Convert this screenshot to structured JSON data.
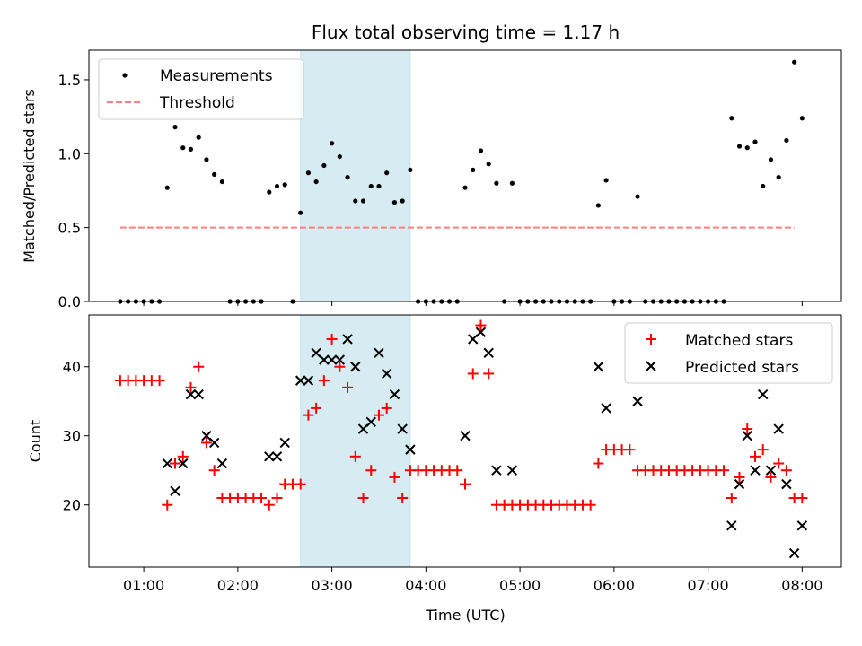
{
  "chart_data": [
    {
      "type": "scatter",
      "title": "Flux total observing time = 1.17 h",
      "xlabel": "",
      "ylabel": "Matched/Predicted stars",
      "xlim": [
        "00:25",
        "08:25"
      ],
      "ylim": [
        0,
        1.7
      ],
      "y_ticks": [
        0.0,
        0.5,
        1.0,
        1.5
      ],
      "y_tick_labels": [
        "0.0",
        "0.5",
        "1.0",
        "1.5"
      ],
      "x_tick_labels_shown": false,
      "highlight_span": [
        "02:40",
        "03:50"
      ],
      "legend": {
        "position": "top-left",
        "entries": [
          "Measurements",
          "Threshold"
        ]
      },
      "series": [
        {
          "name": "Measurements",
          "marker": "dot",
          "color": "#000000",
          "points": [
            [
              "00:45",
              0
            ],
            [
              "00:50",
              0
            ],
            [
              "00:55",
              0
            ],
            [
              "01:00",
              0
            ],
            [
              "01:05",
              0
            ],
            [
              "01:10",
              0
            ],
            [
              "01:15",
              0.77
            ],
            [
              "01:20",
              1.18
            ],
            [
              "01:25",
              1.04
            ],
            [
              "01:30",
              1.03
            ],
            [
              "01:35",
              1.11
            ],
            [
              "01:40",
              0.96
            ],
            [
              "01:45",
              0.86
            ],
            [
              "01:50",
              0.81
            ],
            [
              "01:55",
              0
            ],
            [
              "02:00",
              0
            ],
            [
              "02:05",
              0
            ],
            [
              "02:10",
              0
            ],
            [
              "02:15",
              0
            ],
            [
              "02:20",
              0.74
            ],
            [
              "02:25",
              0.78
            ],
            [
              "02:30",
              0.79
            ],
            [
              "02:35",
              0
            ],
            [
              "02:40",
              0.6
            ],
            [
              "02:45",
              0.87
            ],
            [
              "02:50",
              0.81
            ],
            [
              "02:55",
              0.92
            ],
            [
              "03:00",
              1.07
            ],
            [
              "03:05",
              0.98
            ],
            [
              "03:10",
              0.84
            ],
            [
              "03:15",
              0.68
            ],
            [
              "03:20",
              0.68
            ],
            [
              "03:25",
              0.78
            ],
            [
              "03:30",
              0.78
            ],
            [
              "03:35",
              0.87
            ],
            [
              "03:40",
              0.67
            ],
            [
              "03:45",
              0.68
            ],
            [
              "03:50",
              0.89
            ],
            [
              "03:55",
              0
            ],
            [
              "04:00",
              0
            ],
            [
              "04:05",
              0
            ],
            [
              "04:10",
              0
            ],
            [
              "04:15",
              0
            ],
            [
              "04:20",
              0
            ],
            [
              "04:25",
              0.77
            ],
            [
              "04:30",
              0.89
            ],
            [
              "04:35",
              1.02
            ],
            [
              "04:40",
              0.93
            ],
            [
              "04:45",
              0.8
            ],
            [
              "04:50",
              0
            ],
            [
              "04:55",
              0.8
            ],
            [
              "05:00",
              0
            ],
            [
              "05:05",
              0
            ],
            [
              "05:10",
              0
            ],
            [
              "05:15",
              0
            ],
            [
              "05:20",
              0
            ],
            [
              "05:25",
              0
            ],
            [
              "05:30",
              0
            ],
            [
              "05:35",
              0
            ],
            [
              "05:40",
              0
            ],
            [
              "05:45",
              0
            ],
            [
              "05:50",
              0.65
            ],
            [
              "05:55",
              0.82
            ],
            [
              "06:00",
              0
            ],
            [
              "06:05",
              0
            ],
            [
              "06:10",
              0
            ],
            [
              "06:15",
              0.71
            ],
            [
              "06:20",
              0
            ],
            [
              "06:25",
              0
            ],
            [
              "06:30",
              0
            ],
            [
              "06:35",
              0
            ],
            [
              "06:40",
              0
            ],
            [
              "06:45",
              0
            ],
            [
              "06:50",
              0
            ],
            [
              "06:55",
              0
            ],
            [
              "07:00",
              0
            ],
            [
              "07:05",
              0
            ],
            [
              "07:10",
              0
            ],
            [
              "07:15",
              1.24
            ],
            [
              "07:20",
              1.05
            ],
            [
              "07:25",
              1.04
            ],
            [
              "07:30",
              1.08
            ],
            [
              "07:35",
              0.78
            ],
            [
              "07:40",
              0.96
            ],
            [
              "07:45",
              0.84
            ],
            [
              "07:50",
              1.09
            ],
            [
              "07:55",
              1.62
            ],
            [
              "08:00",
              1.24
            ]
          ]
        },
        {
          "name": "Threshold",
          "marker": "dashed-line",
          "color": "#ff7f7f",
          "points": [
            [
              "00:45",
              0.5
            ],
            [
              "07:55",
              0.5
            ]
          ]
        }
      ]
    },
    {
      "type": "scatter",
      "title": "",
      "xlabel": "Time (UTC)",
      "ylabel": "Count",
      "xlim": [
        "00:25",
        "08:25"
      ],
      "ylim": [
        11,
        47.5
      ],
      "y_ticks": [
        20,
        30,
        40
      ],
      "y_tick_labels": [
        "20",
        "30",
        "40"
      ],
      "x_ticks": [
        "01:00",
        "02:00",
        "03:00",
        "04:00",
        "05:00",
        "06:00",
        "07:00",
        "08:00"
      ],
      "highlight_span": [
        "02:40",
        "03:50"
      ],
      "legend": {
        "position": "top-right",
        "entries": [
          "Matched stars",
          "Predicted stars"
        ]
      },
      "series": [
        {
          "name": "Matched stars",
          "marker": "plus",
          "color": "#ff0000",
          "points": [
            [
              "00:45",
              38
            ],
            [
              "00:50",
              38
            ],
            [
              "00:55",
              38
            ],
            [
              "01:00",
              38
            ],
            [
              "01:05",
              38
            ],
            [
              "01:10",
              38
            ],
            [
              "01:15",
              20
            ],
            [
              "01:20",
              26
            ],
            [
              "01:25",
              27
            ],
            [
              "01:30",
              37
            ],
            [
              "01:35",
              40
            ],
            [
              "01:40",
              29
            ],
            [
              "01:45",
              25
            ],
            [
              "01:50",
              21
            ],
            [
              "01:55",
              21
            ],
            [
              "02:00",
              21
            ],
            [
              "02:05",
              21
            ],
            [
              "02:10",
              21
            ],
            [
              "02:15",
              21
            ],
            [
              "02:20",
              20
            ],
            [
              "02:25",
              21
            ],
            [
              "02:30",
              23
            ],
            [
              "02:35",
              23
            ],
            [
              "02:40",
              23
            ],
            [
              "02:45",
              33
            ],
            [
              "02:50",
              34
            ],
            [
              "02:55",
              38
            ],
            [
              "03:00",
              44
            ],
            [
              "03:05",
              40
            ],
            [
              "03:10",
              37
            ],
            [
              "03:15",
              27
            ],
            [
              "03:20",
              21
            ],
            [
              "03:25",
              25
            ],
            [
              "03:30",
              33
            ],
            [
              "03:35",
              34
            ],
            [
              "03:40",
              24
            ],
            [
              "03:45",
              21
            ],
            [
              "03:50",
              25
            ],
            [
              "03:55",
              25
            ],
            [
              "04:00",
              25
            ],
            [
              "04:05",
              25
            ],
            [
              "04:10",
              25
            ],
            [
              "04:15",
              25
            ],
            [
              "04:20",
              25
            ],
            [
              "04:25",
              23
            ],
            [
              "04:30",
              39
            ],
            [
              "04:35",
              46
            ],
            [
              "04:40",
              39
            ],
            [
              "04:45",
              20
            ],
            [
              "04:50",
              20
            ],
            [
              "04:55",
              20
            ],
            [
              "05:00",
              20
            ],
            [
              "05:05",
              20
            ],
            [
              "05:10",
              20
            ],
            [
              "05:15",
              20
            ],
            [
              "05:20",
              20
            ],
            [
              "05:25",
              20
            ],
            [
              "05:30",
              20
            ],
            [
              "05:35",
              20
            ],
            [
              "05:40",
              20
            ],
            [
              "05:45",
              20
            ],
            [
              "05:50",
              26
            ],
            [
              "05:55",
              28
            ],
            [
              "06:00",
              28
            ],
            [
              "06:05",
              28
            ],
            [
              "06:10",
              28
            ],
            [
              "06:15",
              25
            ],
            [
              "06:20",
              25
            ],
            [
              "06:25",
              25
            ],
            [
              "06:30",
              25
            ],
            [
              "06:35",
              25
            ],
            [
              "06:40",
              25
            ],
            [
              "06:45",
              25
            ],
            [
              "06:50",
              25
            ],
            [
              "06:55",
              25
            ],
            [
              "07:00",
              25
            ],
            [
              "07:05",
              25
            ],
            [
              "07:10",
              25
            ],
            [
              "07:15",
              21
            ],
            [
              "07:20",
              24
            ],
            [
              "07:25",
              31
            ],
            [
              "07:30",
              27
            ],
            [
              "07:35",
              28
            ],
            [
              "07:40",
              24
            ],
            [
              "07:45",
              26
            ],
            [
              "07:50",
              25
            ],
            [
              "07:55",
              21
            ],
            [
              "08:00",
              21
            ]
          ]
        },
        {
          "name": "Predicted stars",
          "marker": "x",
          "color": "#000000",
          "points": [
            [
              "01:15",
              26
            ],
            [
              "01:20",
              22
            ],
            [
              "01:25",
              26
            ],
            [
              "01:30",
              36
            ],
            [
              "01:35",
              36
            ],
            [
              "01:40",
              30
            ],
            [
              "01:45",
              29
            ],
            [
              "01:50",
              26
            ],
            [
              "02:20",
              27
            ],
            [
              "02:25",
              27
            ],
            [
              "02:30",
              29
            ],
            [
              "02:40",
              38
            ],
            [
              "02:45",
              38
            ],
            [
              "02:50",
              42
            ],
            [
              "02:55",
              41
            ],
            [
              "03:00",
              41
            ],
            [
              "03:05",
              41
            ],
            [
              "03:10",
              44
            ],
            [
              "03:15",
              40
            ],
            [
              "03:20",
              31
            ],
            [
              "03:25",
              32
            ],
            [
              "03:30",
              42
            ],
            [
              "03:35",
              39
            ],
            [
              "03:40",
              36
            ],
            [
              "03:45",
              31
            ],
            [
              "03:50",
              28
            ],
            [
              "04:25",
              30
            ],
            [
              "04:30",
              44
            ],
            [
              "04:35",
              45
            ],
            [
              "04:40",
              42
            ],
            [
              "04:45",
              25
            ],
            [
              "04:55",
              25
            ],
            [
              "05:50",
              40
            ],
            [
              "05:55",
              34
            ],
            [
              "06:15",
              35
            ],
            [
              "07:15",
              17
            ],
            [
              "07:20",
              23
            ],
            [
              "07:25",
              30
            ],
            [
              "07:30",
              25
            ],
            [
              "07:35",
              36
            ],
            [
              "07:40",
              25
            ],
            [
              "07:45",
              31
            ],
            [
              "07:50",
              23
            ],
            [
              "07:55",
              13
            ],
            [
              "08:00",
              17
            ]
          ]
        }
      ]
    }
  ]
}
